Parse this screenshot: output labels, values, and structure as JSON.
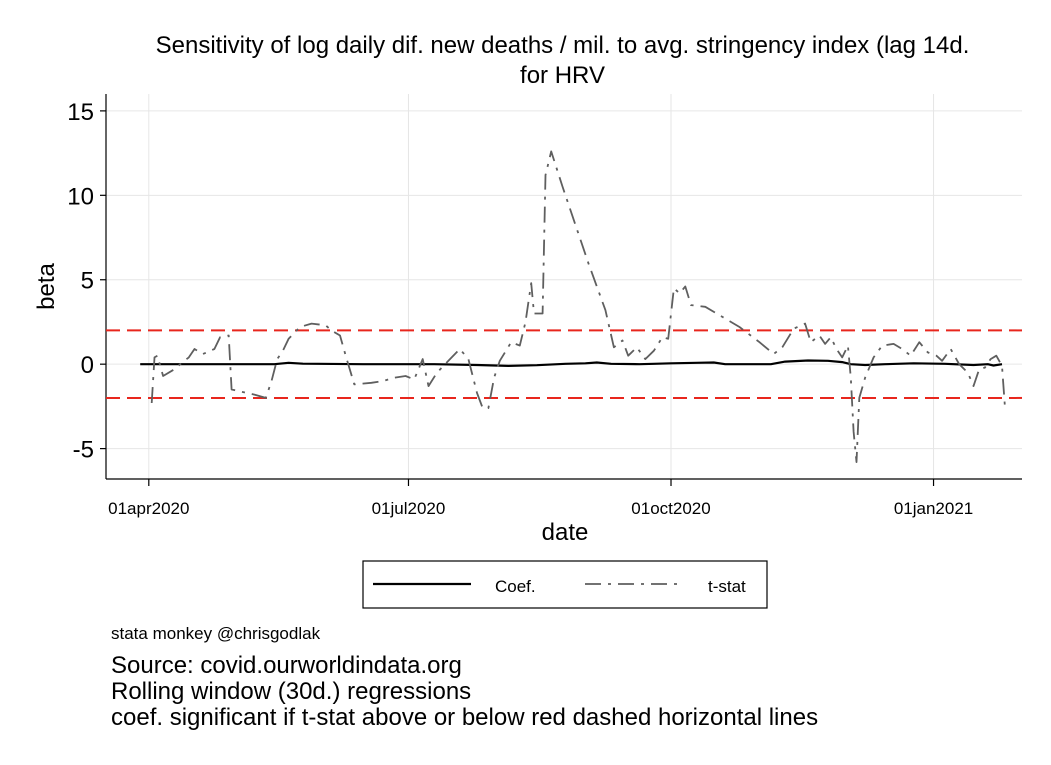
{
  "chart_data": {
    "type": "line",
    "title": "Sensitivity of log daily dif. new deaths / mil. to avg. stringency index (lag 14d.",
    "subtitle": "for HRV",
    "xlabel": "date",
    "ylabel": "beta",
    "x_ticks": [
      "01apr2020",
      "01jul2020",
      "01oct2020",
      "01jan2021"
    ],
    "y_ticks": [
      15,
      10,
      5,
      0,
      -5
    ],
    "xlim": [
      "2020-03-17",
      "2021-02-01"
    ],
    "ylim": [
      -6.8,
      16
    ],
    "grid": true,
    "reference_lines": {
      "y": [
        2,
        -2
      ],
      "color": "#e8261d",
      "style": "dashed"
    },
    "legend": {
      "placement": "bottom",
      "entries": [
        "Coef.",
        "t-stat"
      ]
    },
    "series": [
      {
        "name": "Coef.",
        "color": "#000000",
        "style": "solid",
        "points": [
          [
            "2020-03-29",
            0.0
          ],
          [
            "2020-04-20",
            0.0
          ],
          [
            "2020-05-15",
            0.0
          ],
          [
            "2020-05-20",
            0.08
          ],
          [
            "2020-05-25",
            0.03
          ],
          [
            "2020-06-15",
            0.0
          ],
          [
            "2020-07-10",
            0.0
          ],
          [
            "2020-07-25",
            -0.05
          ],
          [
            "2020-08-05",
            -0.1
          ],
          [
            "2020-08-15",
            -0.06
          ],
          [
            "2020-08-25",
            0.02
          ],
          [
            "2020-09-01",
            0.05
          ],
          [
            "2020-09-05",
            0.1
          ],
          [
            "2020-09-10",
            0.02
          ],
          [
            "2020-09-20",
            0.0
          ],
          [
            "2020-09-25",
            0.02
          ],
          [
            "2020-10-01",
            0.05
          ],
          [
            "2020-10-10",
            0.08
          ],
          [
            "2020-10-16",
            0.1
          ],
          [
            "2020-10-20",
            0.0
          ],
          [
            "2020-11-05",
            0.0
          ],
          [
            "2020-11-10",
            0.15
          ],
          [
            "2020-11-18",
            0.22
          ],
          [
            "2020-11-25",
            0.2
          ],
          [
            "2020-11-30",
            0.12
          ],
          [
            "2020-12-03",
            0.0
          ],
          [
            "2020-12-08",
            -0.05
          ],
          [
            "2020-12-15",
            0.0
          ],
          [
            "2020-12-25",
            0.05
          ],
          [
            "2021-01-05",
            0.02
          ],
          [
            "2021-01-15",
            -0.05
          ],
          [
            "2021-01-20",
            0.0
          ],
          [
            "2021-01-22",
            -0.08
          ],
          [
            "2021-01-25",
            0.0
          ]
        ]
      },
      {
        "name": "t-stat",
        "color": "#5f5f5f",
        "style": "dash-dot",
        "points": [
          [
            "2020-04-02",
            -2.3
          ],
          [
            "2020-04-03",
            0.4
          ],
          [
            "2020-04-04",
            0.5
          ],
          [
            "2020-04-06",
            -0.7
          ],
          [
            "2020-04-10",
            -0.3
          ],
          [
            "2020-04-12",
            0.0
          ],
          [
            "2020-04-15",
            0.4
          ],
          [
            "2020-04-17",
            0.9
          ],
          [
            "2020-04-20",
            0.6
          ],
          [
            "2020-04-24",
            0.9
          ],
          [
            "2020-04-26",
            1.6
          ],
          [
            "2020-04-29",
            1.7
          ],
          [
            "2020-04-30",
            -1.5
          ],
          [
            "2020-05-08",
            -1.8
          ],
          [
            "2020-05-12",
            -2.0
          ],
          [
            "2020-05-14",
            -1.0
          ],
          [
            "2020-05-16",
            0.3
          ],
          [
            "2020-05-18",
            0.8
          ],
          [
            "2020-05-20",
            1.5
          ],
          [
            "2020-05-24",
            2.2
          ],
          [
            "2020-05-28",
            2.4
          ],
          [
            "2020-06-02",
            2.3
          ],
          [
            "2020-06-04",
            2.0
          ],
          [
            "2020-06-07",
            1.7
          ],
          [
            "2020-06-09",
            0.5
          ],
          [
            "2020-06-12",
            -1.2
          ],
          [
            "2020-06-18",
            -1.1
          ],
          [
            "2020-06-22",
            -1.0
          ],
          [
            "2020-06-26",
            -0.8
          ],
          [
            "2020-06-30",
            -0.7
          ],
          [
            "2020-07-03",
            -0.9
          ],
          [
            "2020-07-06",
            0.3
          ],
          [
            "2020-07-08",
            -1.3
          ],
          [
            "2020-07-11",
            -0.5
          ],
          [
            "2020-07-15",
            0.2
          ],
          [
            "2020-07-19",
            0.9
          ],
          [
            "2020-07-22",
            0.3
          ],
          [
            "2020-07-25",
            -1.7
          ],
          [
            "2020-07-27",
            -2.6
          ],
          [
            "2020-07-29",
            -2.6
          ],
          [
            "2020-07-31",
            -0.8
          ],
          [
            "2020-08-02",
            0.2
          ],
          [
            "2020-08-06",
            1.3
          ],
          [
            "2020-08-09",
            1.1
          ],
          [
            "2020-08-11",
            2.5
          ],
          [
            "2020-08-13",
            4.8
          ],
          [
            "2020-08-14",
            3.0
          ],
          [
            "2020-08-17",
            3.0
          ],
          [
            "2020-08-18",
            11.2
          ],
          [
            "2020-08-20",
            12.6
          ],
          [
            "2020-08-24",
            10.5
          ],
          [
            "2020-09-02",
            6.0
          ],
          [
            "2020-09-08",
            3.2
          ],
          [
            "2020-09-11",
            1.0
          ],
          [
            "2020-09-14",
            1.4
          ],
          [
            "2020-09-16",
            0.5
          ],
          [
            "2020-09-19",
            1.0
          ],
          [
            "2020-09-22",
            0.3
          ],
          [
            "2020-09-25",
            0.8
          ],
          [
            "2020-09-28",
            1.6
          ],
          [
            "2020-09-30",
            1.5
          ],
          [
            "2020-10-02",
            4.5
          ],
          [
            "2020-10-04",
            4.2
          ],
          [
            "2020-10-06",
            4.6
          ],
          [
            "2020-10-08",
            3.5
          ],
          [
            "2020-10-13",
            3.4
          ],
          [
            "2020-10-19",
            2.8
          ],
          [
            "2020-10-25",
            2.2
          ],
          [
            "2020-11-01",
            1.3
          ],
          [
            "2020-11-06",
            0.6
          ],
          [
            "2020-11-09",
            1.0
          ],
          [
            "2020-11-13",
            2.1
          ],
          [
            "2020-11-17",
            2.4
          ],
          [
            "2020-11-19",
            1.3
          ],
          [
            "2020-11-22",
            1.7
          ],
          [
            "2020-11-24",
            1.2
          ],
          [
            "2020-11-26",
            1.6
          ],
          [
            "2020-11-28",
            0.9
          ],
          [
            "2020-11-30",
            0.4
          ],
          [
            "2020-12-02",
            1.1
          ],
          [
            "2020-12-03",
            -0.8
          ],
          [
            "2020-12-04",
            -4.0
          ],
          [
            "2020-12-05",
            -5.8
          ],
          [
            "2020-12-06",
            -2.0
          ],
          [
            "2020-12-08",
            -0.8
          ],
          [
            "2020-12-11",
            0.4
          ],
          [
            "2020-12-14",
            1.1
          ],
          [
            "2020-12-18",
            1.2
          ],
          [
            "2020-12-21",
            0.9
          ],
          [
            "2020-12-24",
            0.5
          ],
          [
            "2020-12-27",
            1.3
          ],
          [
            "2020-12-30",
            0.7
          ],
          [
            "2021-01-02",
            0.5
          ],
          [
            "2021-01-04",
            0.2
          ],
          [
            "2021-01-07",
            0.9
          ],
          [
            "2021-01-10",
            0.0
          ],
          [
            "2021-01-13",
            -0.5
          ],
          [
            "2021-01-15",
            -1.3
          ],
          [
            "2021-01-17",
            -0.3
          ],
          [
            "2021-01-19",
            -0.2
          ],
          [
            "2021-01-21",
            0.3
          ],
          [
            "2021-01-23",
            0.5
          ],
          [
            "2021-01-25",
            -0.1
          ],
          [
            "2021-01-26",
            -2.5
          ]
        ]
      }
    ]
  },
  "notes": {
    "credit": "stata monkey @chrisgodlak",
    "source": "Source: covid.ourworldindata.org",
    "method": "Rolling window (30d.) regressions",
    "significance": "coef. significant if t-stat above or below red dashed horizontal lines"
  }
}
